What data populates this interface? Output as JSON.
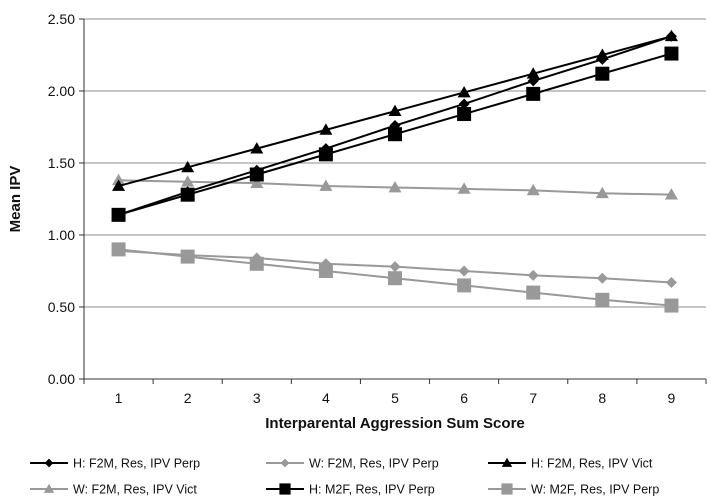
{
  "chart_data": {
    "type": "line",
    "title": "",
    "xlabel": "Interparental Aggression Sum Score",
    "ylabel": "Mean IPV",
    "x": [
      1,
      2,
      3,
      4,
      5,
      6,
      7,
      8,
      9
    ],
    "xlim": [
      0.5,
      9.5
    ],
    "ylim": [
      0,
      2.5
    ],
    "yticks": [
      "0.00",
      "0.50",
      "1.00",
      "1.50",
      "2.00",
      "2.50"
    ],
    "grid": "horizontal",
    "legend_position": "bottom",
    "series": [
      {
        "name": "H: F2M, Res, IPV Perp",
        "color": "#000000",
        "marker": "diamond",
        "values": [
          1.14,
          1.3,
          1.45,
          1.6,
          1.76,
          1.91,
          2.07,
          2.22,
          2.38
        ]
      },
      {
        "name": "W: F2M, Res, IPV Perp",
        "color": "#999999",
        "marker": "diamond",
        "values": [
          0.89,
          0.86,
          0.84,
          0.8,
          0.78,
          0.75,
          0.72,
          0.7,
          0.67
        ]
      },
      {
        "name": "H: F2M, Res, IPV Vict",
        "color": "#000000",
        "marker": "triangle",
        "values": [
          1.34,
          1.47,
          1.6,
          1.73,
          1.86,
          1.99,
          2.12,
          2.25,
          2.38
        ]
      },
      {
        "name": "W: F2M, Res, IPV Vict",
        "color": "#999999",
        "marker": "triangle",
        "values": [
          1.38,
          1.37,
          1.36,
          1.34,
          1.33,
          1.32,
          1.31,
          1.29,
          1.28
        ]
      },
      {
        "name": "H: M2F, Res, IPV Perp",
        "color": "#000000",
        "marker": "square",
        "values": [
          1.14,
          1.28,
          1.42,
          1.56,
          1.7,
          1.84,
          1.98,
          2.12,
          2.26
        ]
      },
      {
        "name": "W: M2F, Res, IPV Perp",
        "color": "#999999",
        "marker": "square",
        "values": [
          0.9,
          0.85,
          0.8,
          0.75,
          0.7,
          0.65,
          0.6,
          0.55,
          0.51
        ]
      }
    ]
  }
}
